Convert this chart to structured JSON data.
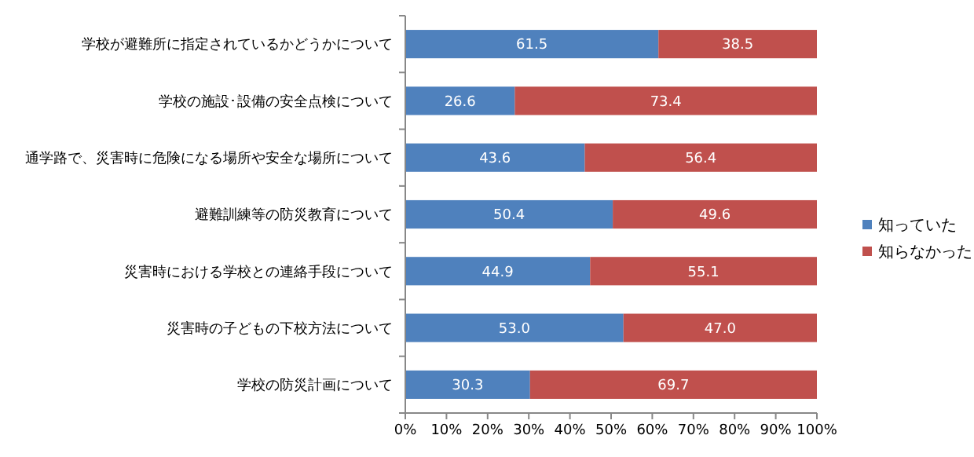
{
  "chart_data": {
    "type": "bar",
    "orientation": "horizontal",
    "stacked": true,
    "categories": [
      "学校が避難所に指定されているかどうかについて",
      "学校の施設･設備の安全点検について",
      "通学路で、災害時に危険になる場所や安全な場所について",
      "避難訓練等の防災教育について",
      "災害時における学校との連絡手段について",
      "災害時の子どもの下校方法について",
      "学校の防災計画について"
    ],
    "series": [
      {
        "name": "知っていた",
        "color": "#4f81bd",
        "values": [
          61.5,
          26.6,
          43.6,
          50.4,
          44.9,
          53.0,
          30.3
        ],
        "value_labels": [
          "61.5",
          "26.6",
          "43.6",
          "50.4",
          "44.9",
          "53.0",
          "30.3"
        ]
      },
      {
        "name": "知らなかった",
        "color": "#c0504d",
        "values": [
          38.5,
          73.4,
          56.4,
          49.6,
          55.1,
          47.0,
          69.7
        ],
        "value_labels": [
          "38.5",
          "73.4",
          "56.4",
          "49.6",
          "55.1",
          "47.0",
          "69.7"
        ]
      }
    ],
    "xlim": [
      0,
      100
    ],
    "xticks": [
      {
        "value": 0,
        "label": "0%"
      },
      {
        "value": 10,
        "label": "10%"
      },
      {
        "value": 20,
        "label": "20%"
      },
      {
        "value": 30,
        "label": "30%"
      },
      {
        "value": 40,
        "label": "40%"
      },
      {
        "value": 50,
        "label": "50%"
      },
      {
        "value": 60,
        "label": "60%"
      },
      {
        "value": 70,
        "label": "70%"
      },
      {
        "value": 80,
        "label": "80%"
      },
      {
        "value": 90,
        "label": "90%"
      },
      {
        "value": 100,
        "label": "100%"
      }
    ],
    "grid": false,
    "legend": "right"
  }
}
